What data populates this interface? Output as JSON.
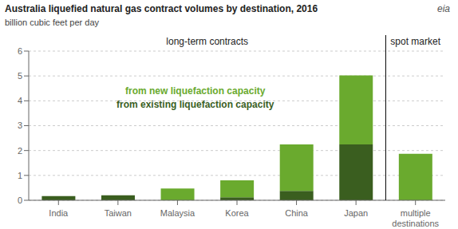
{
  "chart_data": {
    "type": "bar",
    "title": "Australia liquefied natural gas contract volumes by destination, 2016",
    "subtitle": "billion cubic feet per day",
    "categories": [
      "India",
      "Taiwan",
      "Malaysia",
      "Korea",
      "China",
      "Japan",
      "multiple\ndestinations"
    ],
    "series": [
      {
        "name": "from existing liquefaction capacity",
        "color": "#3a5e1f",
        "values": [
          0.17,
          0.2,
          0.0,
          0.12,
          0.38,
          2.25,
          0.0
        ]
      },
      {
        "name": "from new liquefaction capacity",
        "color": "#6aaa2e",
        "values": [
          0.0,
          0.0,
          0.47,
          0.68,
          1.87,
          2.77,
          1.87
        ]
      }
    ],
    "stacked": true,
    "ylim": [
      0,
      6
    ],
    "yticks": [
      0,
      1,
      2,
      3,
      4,
      5,
      6
    ],
    "grid": true,
    "legend": "upper center",
    "annotations": [
      "long-term contracts",
      "spot market",
      "eia"
    ]
  }
}
